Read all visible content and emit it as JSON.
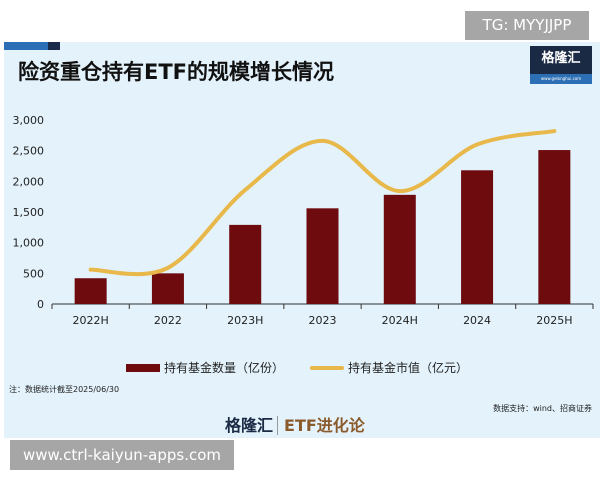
{
  "title": "险资重仓持有ETF的规模增长情况",
  "logo": {
    "name": "格隆汇",
    "url": "www.gelonghui.com"
  },
  "overlays": {
    "tg": "TG: MYYJJPP",
    "url": "www.ctrl-kaiyun-apps.com"
  },
  "note": "注：数据统计截至2025/06/30",
  "source": "数据支持：wind、招商证券",
  "footer": {
    "brand": "格隆汇",
    "column": "ETF进化论"
  },
  "colors": {
    "bar": "#6e0b0f",
    "line": "#e8b84a"
  },
  "chart_data": {
    "type": "bar+line",
    "categories": [
      "2022H",
      "2022",
      "2023H",
      "2023",
      "2024H",
      "2024",
      "2025H"
    ],
    "yticks": [
      "0",
      "500",
      "1,000",
      "1,500",
      "2,000",
      "2,500",
      "3,000"
    ],
    "ylim": [
      0,
      3000
    ],
    "grid": false,
    "legend": "bottom",
    "series": [
      {
        "name": "持有基金数量（亿份）",
        "type": "bar",
        "values": [
          420,
          500,
          1290,
          1560,
          1780,
          2180,
          2510
        ]
      },
      {
        "name": "持有基金市值（亿元）",
        "type": "line",
        "smooth": true,
        "values": [
          560,
          590,
          1860,
          2660,
          1840,
          2600,
          2820
        ]
      }
    ]
  }
}
